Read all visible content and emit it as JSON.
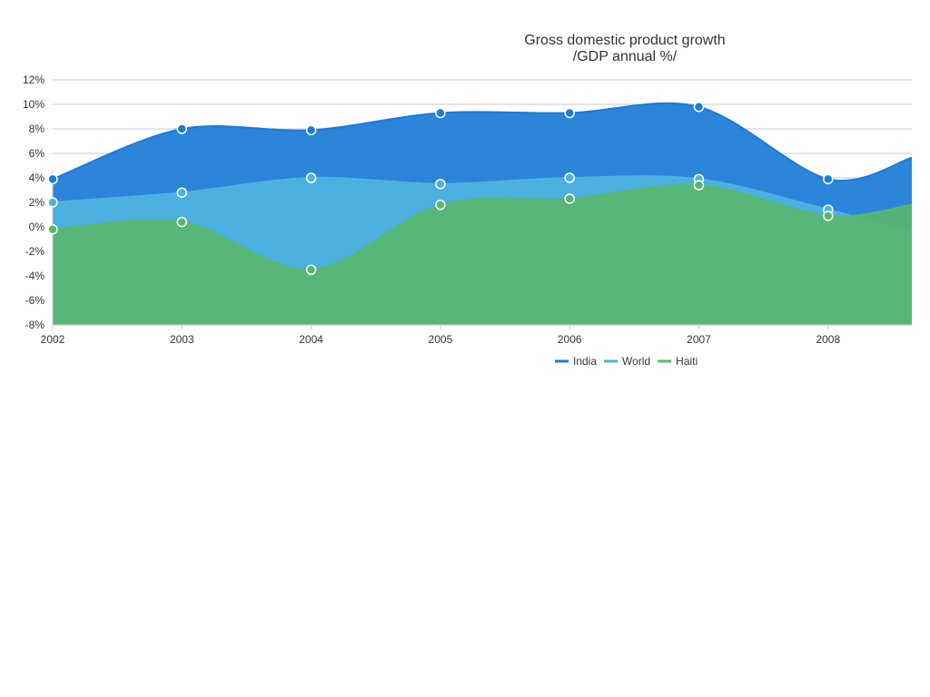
{
  "chart_data": {
    "type": "area",
    "title": [
      "Gross domestic product growth",
      "/GDP annual %/"
    ],
    "x": [
      "2002",
      "2003",
      "2004",
      "2005",
      "2006",
      "2007",
      "2008"
    ],
    "y_ticks": [
      "12%",
      "10%",
      "8%",
      "6%",
      "4%",
      "2%",
      "0%",
      "-2%",
      "-4%",
      "-6%",
      "-8%"
    ],
    "ylim": [
      -8,
      12
    ],
    "grid": true,
    "legend_position": "bottom",
    "series": [
      {
        "name": "India",
        "color": "#1a7bd8",
        "values": [
          3.9,
          8.0,
          7.9,
          9.3,
          9.3,
          9.8,
          3.9
        ],
        "end_value": 6.6
      },
      {
        "name": "World",
        "color": "#4eb3e0",
        "values": [
          2.0,
          2.8,
          4.0,
          3.5,
          4.0,
          3.9,
          1.4
        ],
        "end_value": -1.4
      },
      {
        "name": "Haiti",
        "color": "#58b76f",
        "values": [
          -0.2,
          0.4,
          -3.5,
          1.8,
          2.3,
          3.4,
          0.9
        ],
        "end_value": 2.3
      }
    ]
  }
}
